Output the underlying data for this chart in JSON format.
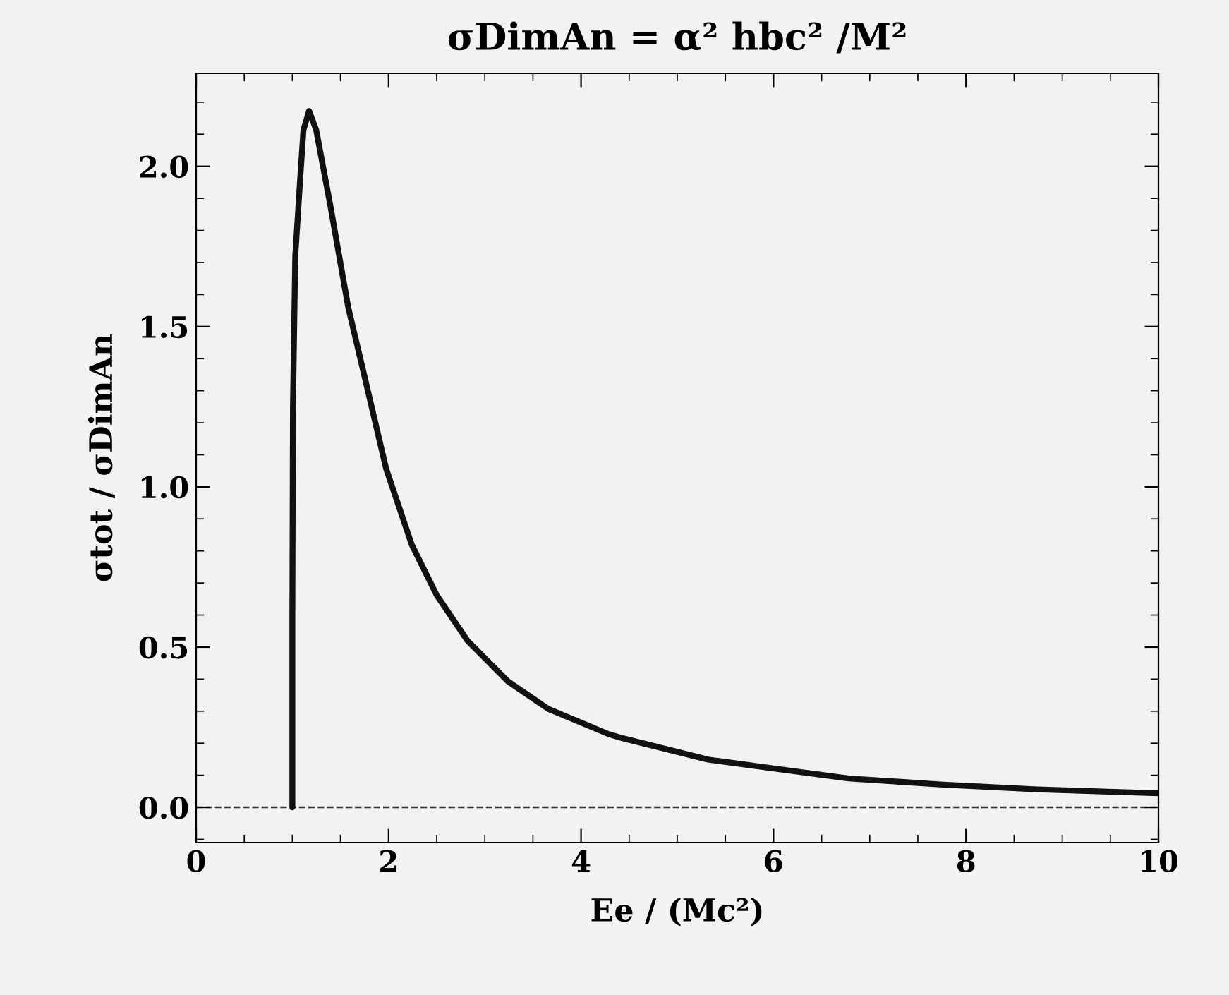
{
  "chart_data": {
    "type": "line",
    "title": "σDimAn = α² hbc² /M²",
    "xlabel": "Ee / (Mc²)",
    "ylabel": "σtot / σDimAn",
    "series": [
      {
        "color": "#111111",
        "x": [
          1.0,
          1.0,
          1.006,
          1.03,
          1.08,
          1.115,
          1.174,
          1.248,
          1.395,
          1.58,
          1.765,
          1.975,
          2.24,
          2.5,
          2.82,
          3.24,
          3.66,
          4.29,
          4.44,
          5.32,
          6.05,
          6.78,
          7.76,
          8.74,
          10
        ],
        "values": [
          0,
          0.614,
          1.245,
          1.72,
          1.955,
          2.113,
          2.173,
          2.113,
          1.877,
          1.561,
          1.325,
          1.056,
          0.82,
          0.662,
          0.52,
          0.393,
          0.307,
          0.228,
          0.215,
          0.149,
          0.119,
          0.09,
          0.071,
          0.056,
          0.044
        ]
      }
    ],
    "xlim": [
      0,
      10
    ],
    "xticks": [
      0,
      2,
      4,
      6,
      8,
      10
    ],
    "ylim": [
      -0.11,
      2.29
    ],
    "yticks": [
      {
        "value": 0,
        "label": "0.0"
      },
      {
        "value": 0.5,
        "label": "0.5"
      },
      {
        "value": 1,
        "label": "1.0"
      },
      {
        "value": 1.5,
        "label": "1.5"
      },
      {
        "value": 2,
        "label": "2.0"
      }
    ],
    "ref_lines": [
      {
        "axis": "y",
        "value": 0,
        "color": "#333333",
        "line_style": "dashed"
      }
    ],
    "grid": false,
    "marker": "none",
    "line_style": "solid"
  }
}
